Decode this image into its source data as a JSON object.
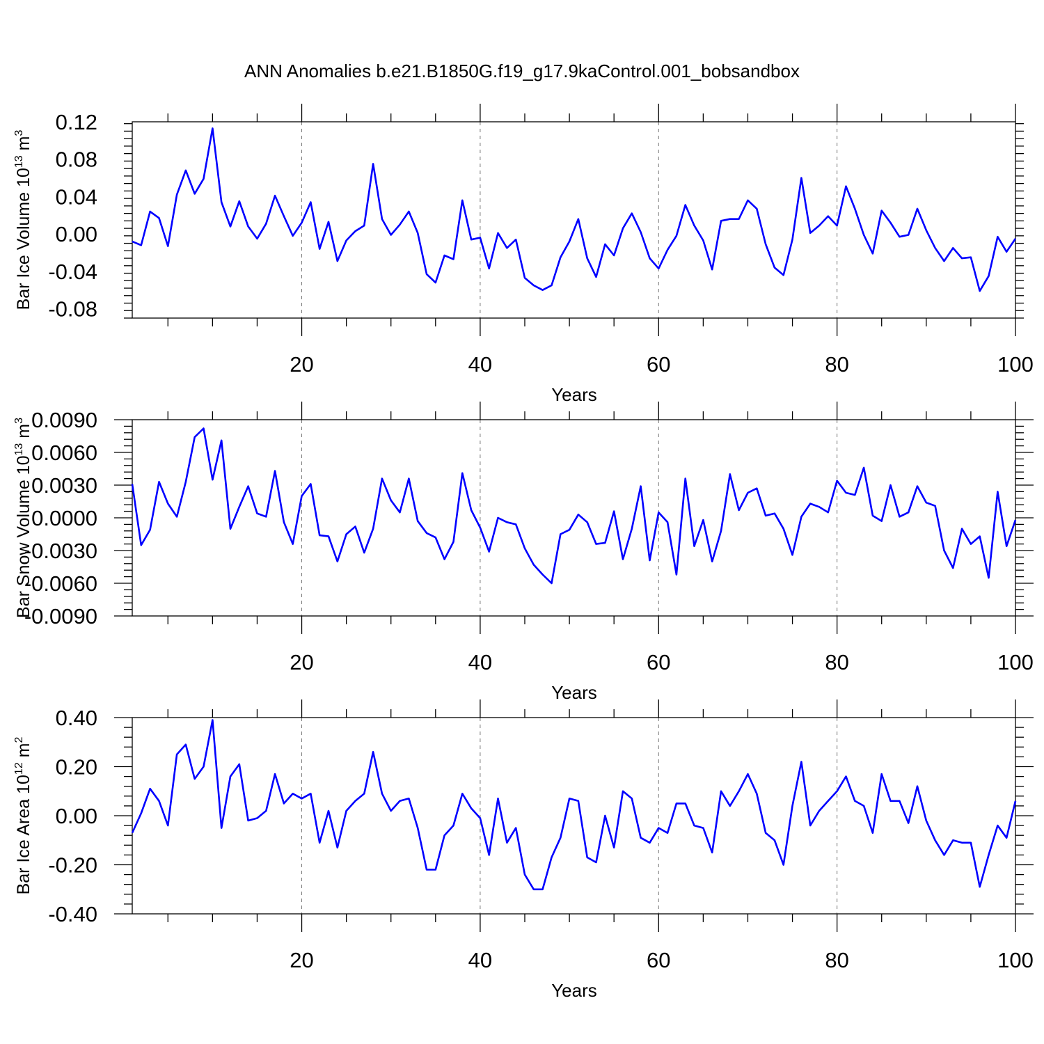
{
  "title": "ANN Anomalies b.e21.B1850G.f19_g17.9kaControl.001_bobsandbox",
  "colors": {
    "line": "#0000ff",
    "axis": "#000000",
    "grid": "#777777"
  },
  "chart_data": [
    {
      "type": "line",
      "ylabel": "Bar Ice Volume 10",
      "ylabel_exp": "13",
      "ylabel_unit": " m",
      "ylabel_unit_exp": "3",
      "xlabel": "Years",
      "xlim": [
        1,
        100
      ],
      "ylim": [
        -0.09,
        0.12
      ],
      "xticks": [
        20,
        40,
        60,
        80,
        100
      ],
      "yticks": [
        -0.08,
        -0.04,
        0.0,
        0.04,
        0.08,
        0.12
      ],
      "ytick_labels": [
        "-0.08",
        "-0.04",
        "0.00",
        "0.04",
        "0.08",
        "0.12"
      ],
      "grid_x": [
        20,
        40,
        60,
        80
      ],
      "series": [
        {
          "values": [
            -0.008,
            -0.012,
            0.024,
            0.017,
            -0.013,
            0.042,
            0.068,
            0.043,
            0.059,
            0.113,
            0.034,
            0.008,
            0.035,
            0.008,
            -0.005,
            0.011,
            0.041,
            0.019,
            -0.002,
            0.012,
            0.034,
            -0.016,
            0.013,
            -0.029,
            -0.007,
            0.003,
            0.009,
            0.075,
            0.016,
            -0.001,
            0.01,
            0.024,
            0.001,
            -0.043,
            -0.052,
            -0.023,
            -0.027,
            0.036,
            -0.006,
            -0.004,
            -0.037,
            0.001,
            -0.015,
            -0.006,
            -0.047,
            -0.055,
            -0.06,
            -0.055,
            -0.025,
            -0.008,
            0.016,
            -0.026,
            -0.046,
            -0.011,
            -0.023,
            0.006,
            0.022,
            0.002,
            -0.026,
            -0.037,
            -0.017,
            -0.002,
            0.031,
            0.009,
            -0.007,
            -0.038,
            0.014,
            0.016,
            0.016,
            0.036,
            0.027,
            -0.011,
            -0.036,
            -0.044,
            -0.006,
            0.06,
            0.001,
            0.009,
            0.019,
            0.009,
            0.051,
            0.027,
            -0.001,
            -0.021,
            0.025,
            0.012,
            -0.003,
            -0.001,
            0.027,
            0.004,
            -0.015,
            -0.029,
            -0.015,
            -0.026,
            -0.025,
            -0.061,
            -0.045,
            -0.003,
            -0.019,
            -0.005
          ]
        }
      ]
    },
    {
      "type": "line",
      "ylabel": "Bar Snow Volume 10",
      "ylabel_exp": "13",
      "ylabel_unit": " m",
      "ylabel_unit_exp": "3",
      "xlabel": "Years",
      "xlim": [
        1,
        100
      ],
      "ylim": [
        -0.009,
        0.009
      ],
      "xticks": [
        20,
        40,
        60,
        80,
        100
      ],
      "yticks": [
        -0.009,
        -0.006,
        -0.003,
        0.0,
        0.003,
        0.006,
        0.009
      ],
      "ytick_labels": [
        "-0.0090",
        "-0.0060",
        "-0.0030",
        "0.0000",
        "0.0030",
        "0.0060",
        "0.0090"
      ],
      "grid_x": [
        20,
        40,
        60,
        80
      ],
      "series": [
        {
          "values": [
            0.0031,
            -0.0025,
            -0.0011,
            0.0033,
            0.0013,
            0.0001,
            0.0033,
            0.0074,
            0.0082,
            0.0035,
            0.0071,
            -0.001,
            0.001,
            0.0029,
            0.0004,
            0.0001,
            0.0043,
            -0.0004,
            -0.0024,
            0.002,
            0.0031,
            -0.0016,
            -0.0017,
            -0.004,
            -0.0015,
            -0.0008,
            -0.0032,
            -0.001,
            0.0036,
            0.0016,
            0.0005,
            0.0036,
            -0.0003,
            -0.0014,
            -0.0018,
            -0.0038,
            -0.0022,
            0.0041,
            0.0007,
            -0.0009,
            -0.0031,
            0.0,
            -0.0004,
            -0.0006,
            -0.0028,
            -0.0043,
            -0.0052,
            -0.006,
            -0.0015,
            -0.0011,
            0.0003,
            -0.0004,
            -0.0024,
            -0.0023,
            0.0006,
            -0.0038,
            -0.001,
            0.0029,
            -0.0039,
            0.0005,
            -0.0004,
            -0.0052,
            0.0036,
            -0.0026,
            -0.0002,
            -0.004,
            -0.0012,
            0.004,
            0.0007,
            0.0023,
            0.0027,
            0.0002,
            0.0004,
            -0.001,
            -0.0034,
            0.0001,
            0.0013,
            0.001,
            0.0005,
            0.0034,
            0.0023,
            0.0021,
            0.0046,
            0.0002,
            -0.0003,
            0.003,
            0.0001,
            0.0005,
            0.0029,
            0.0014,
            0.0011,
            -0.003,
            -0.0046,
            -0.001,
            -0.0024,
            -0.0017,
            -0.0055,
            0.0024,
            -0.0026,
            -0.0002
          ]
        }
      ]
    },
    {
      "type": "line",
      "ylabel": "Bar Ice Area 10",
      "ylabel_exp": "12",
      "ylabel_unit": " m",
      "ylabel_unit_exp": "2",
      "xlabel": "Years",
      "xlim": [
        1,
        100
      ],
      "ylim": [
        -0.4,
        0.4
      ],
      "xticks": [
        20,
        40,
        60,
        80,
        100
      ],
      "yticks": [
        -0.4,
        -0.2,
        0.0,
        0.2,
        0.4
      ],
      "ytick_labels": [
        "-0.40",
        "-0.20",
        "0.00",
        "0.20",
        "0.40"
      ],
      "grid_x": [
        20,
        40,
        60,
        80
      ],
      "series": [
        {
          "values": [
            -0.07,
            0.01,
            0.11,
            0.06,
            -0.04,
            0.25,
            0.29,
            0.15,
            0.2,
            0.39,
            -0.05,
            0.16,
            0.21,
            -0.02,
            -0.01,
            0.02,
            0.17,
            0.05,
            0.09,
            0.07,
            0.09,
            -0.11,
            0.02,
            -0.13,
            0.02,
            0.06,
            0.09,
            0.26,
            0.09,
            0.02,
            0.06,
            0.07,
            -0.05,
            -0.22,
            -0.22,
            -0.08,
            -0.04,
            0.09,
            0.03,
            -0.01,
            -0.16,
            0.07,
            -0.11,
            -0.05,
            -0.24,
            -0.3,
            -0.3,
            -0.17,
            -0.09,
            0.07,
            0.06,
            -0.17,
            -0.19,
            0.0,
            -0.13,
            0.1,
            0.07,
            -0.09,
            -0.11,
            -0.05,
            -0.07,
            0.05,
            0.05,
            -0.04,
            -0.05,
            -0.15,
            0.1,
            0.04,
            0.1,
            0.17,
            0.09,
            -0.07,
            -0.1,
            -0.2,
            0.04,
            0.22,
            -0.04,
            0.02,
            0.06,
            0.1,
            0.16,
            0.06,
            0.04,
            -0.07,
            0.17,
            0.06,
            0.06,
            -0.03,
            0.12,
            -0.02,
            -0.1,
            -0.16,
            -0.1,
            -0.11,
            -0.11,
            -0.29,
            -0.16,
            -0.04,
            -0.09,
            0.06
          ]
        }
      ]
    }
  ]
}
